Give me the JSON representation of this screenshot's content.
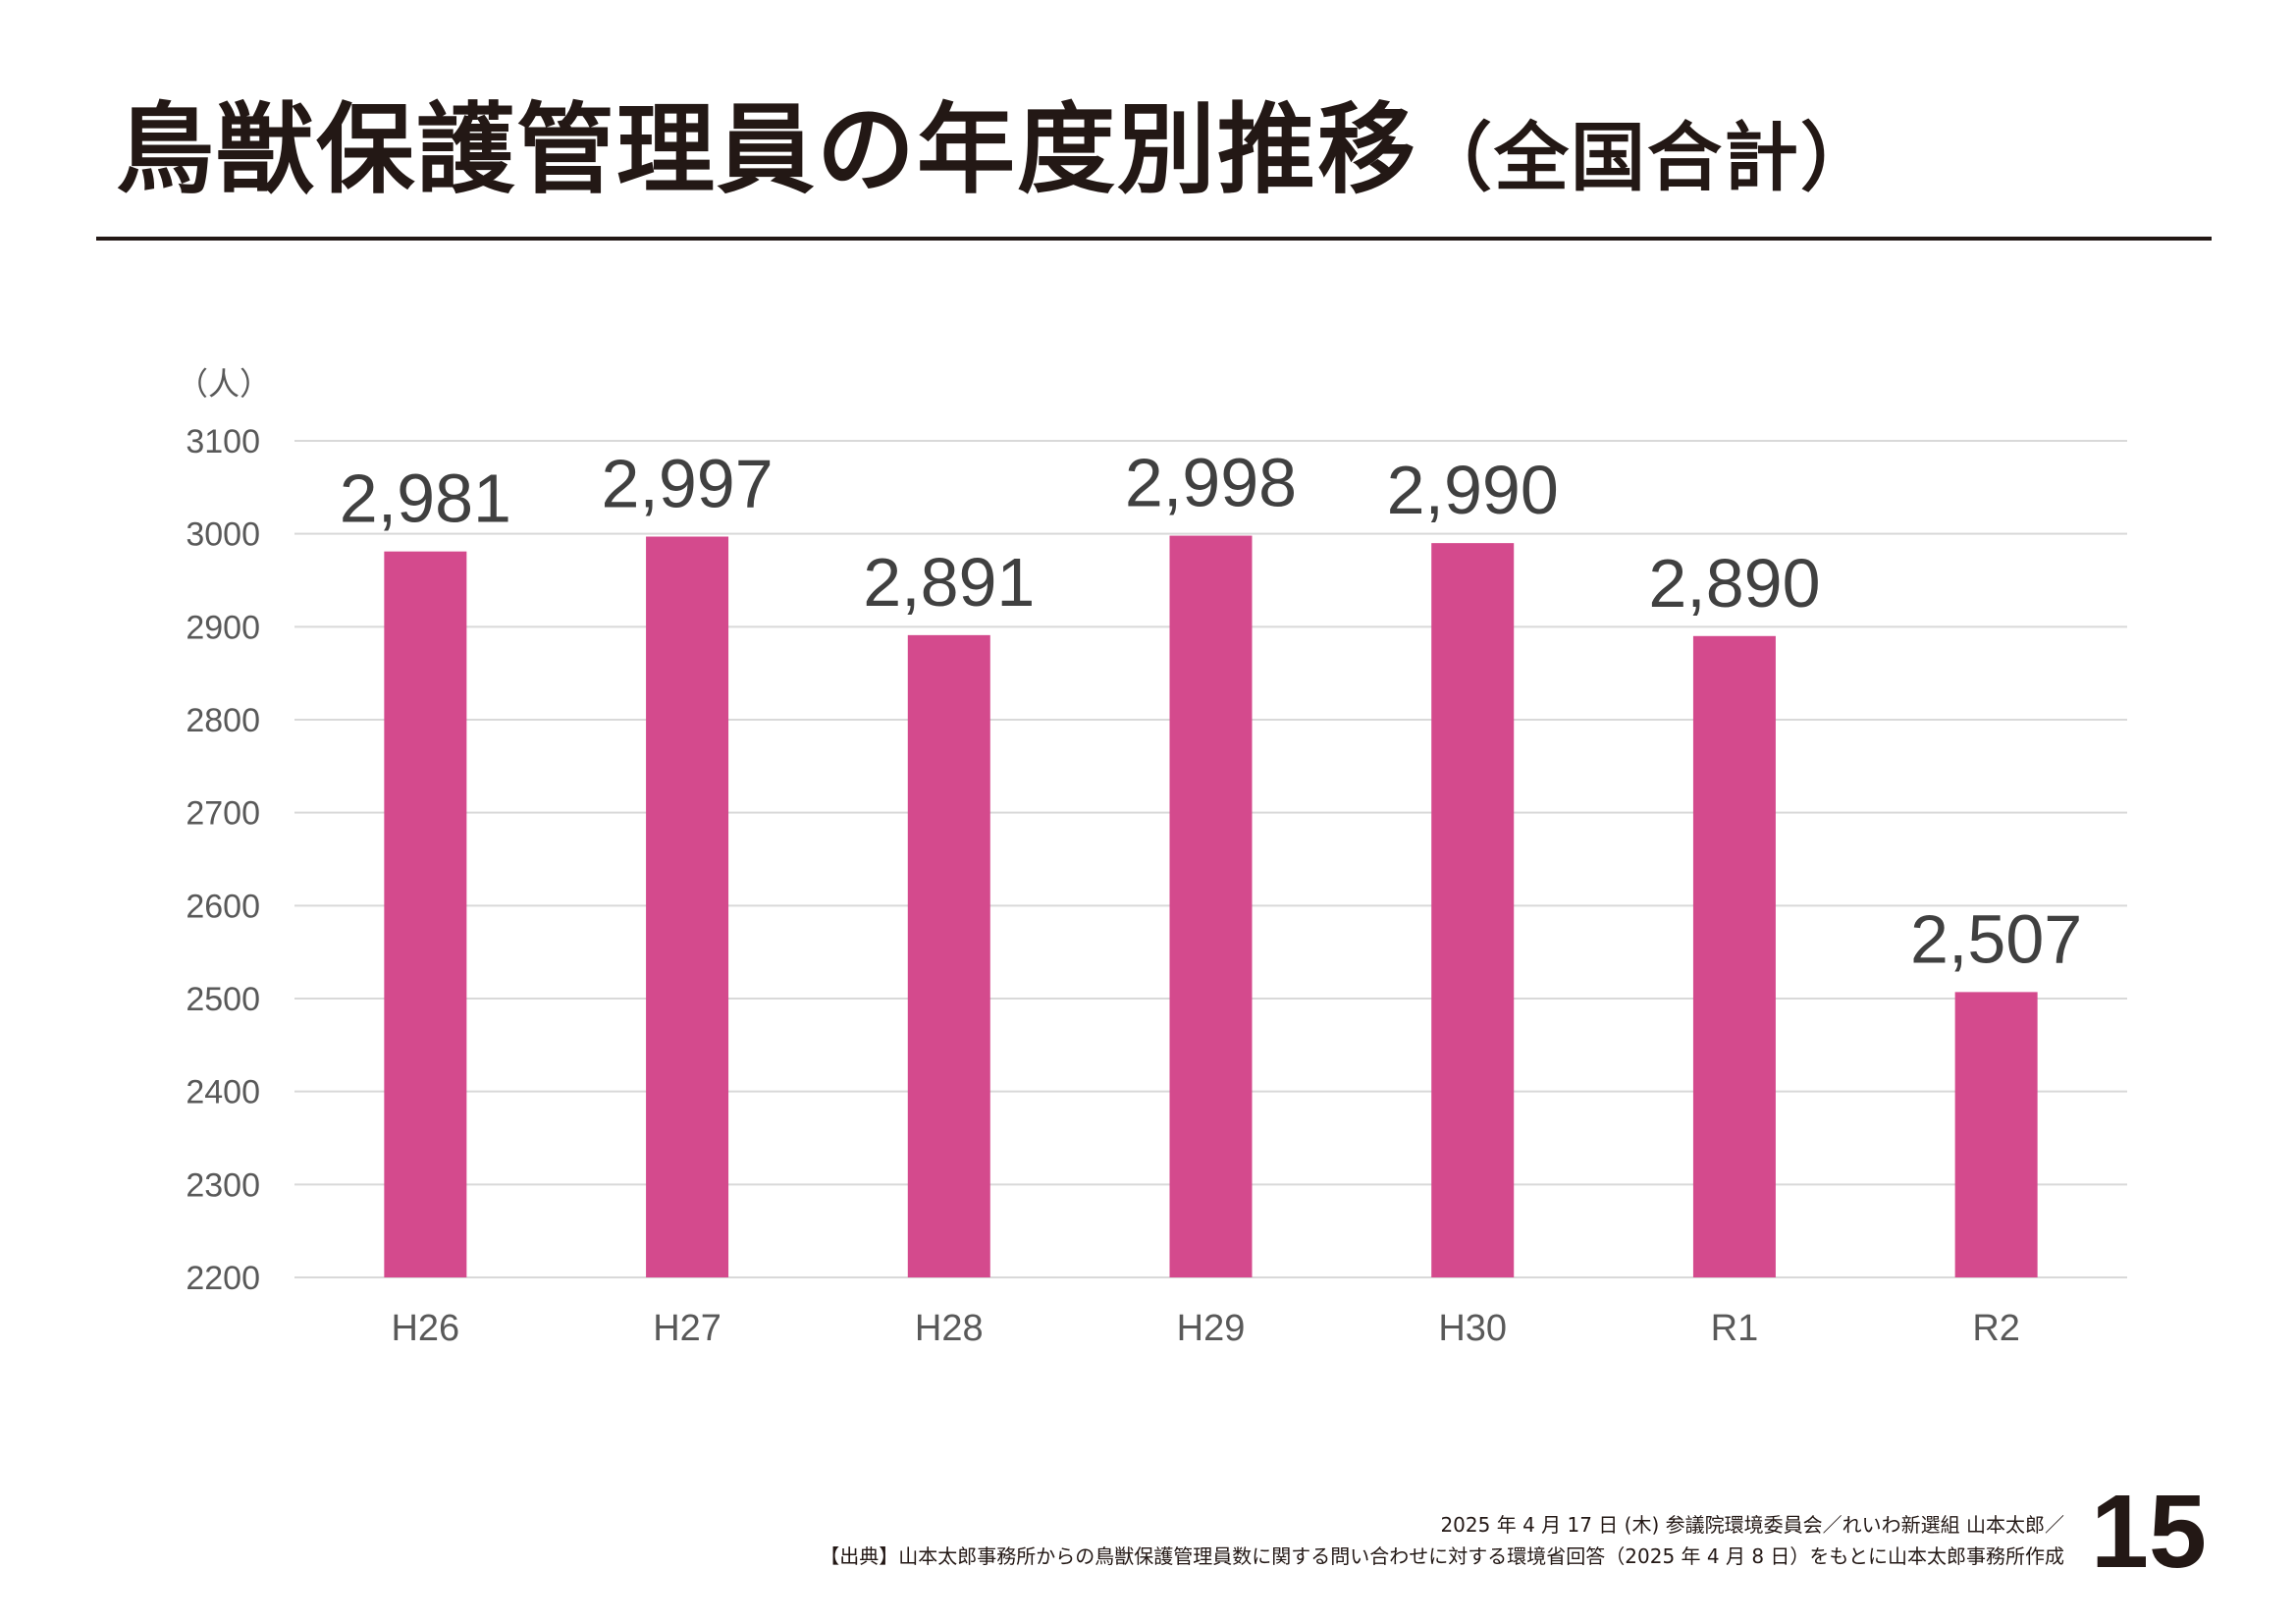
{
  "title": {
    "main": "鳥獣保護管理員の年度別推移",
    "sub": "（全国合計）"
  },
  "chart_data": {
    "type": "bar",
    "unit_label": "（人）",
    "categories": [
      "H26",
      "H27",
      "H28",
      "H29",
      "H30",
      "R1",
      "R2"
    ],
    "series": [
      {
        "values": [
          2981,
          2997,
          2891,
          2998,
          2990,
          2890,
          2507
        ]
      }
    ],
    "data_labels": [
      "2,981",
      "2,997",
      "2,891",
      "2,998",
      "2,990",
      "2,890",
      "2,507"
    ],
    "ylim": [
      2200,
      3100
    ],
    "y_ticks": [
      2200,
      2300,
      2400,
      2500,
      2600,
      2700,
      2800,
      2900,
      3000,
      3100
    ],
    "grid": true,
    "legend": "none",
    "bar_color": "#D44A8D"
  },
  "footer": {
    "line1": "2025 年 4 月 17 日 (木)  参議院環境委員会／れいわ新選組 山本太郎／",
    "line2": "【出典】山本太郎事務所からの鳥獣保護管理員数に関する問い合わせに対する環境省回答（2025 年 4 月 8 日）をもとに山本太郎事務所作成"
  },
  "page_number": "15"
}
